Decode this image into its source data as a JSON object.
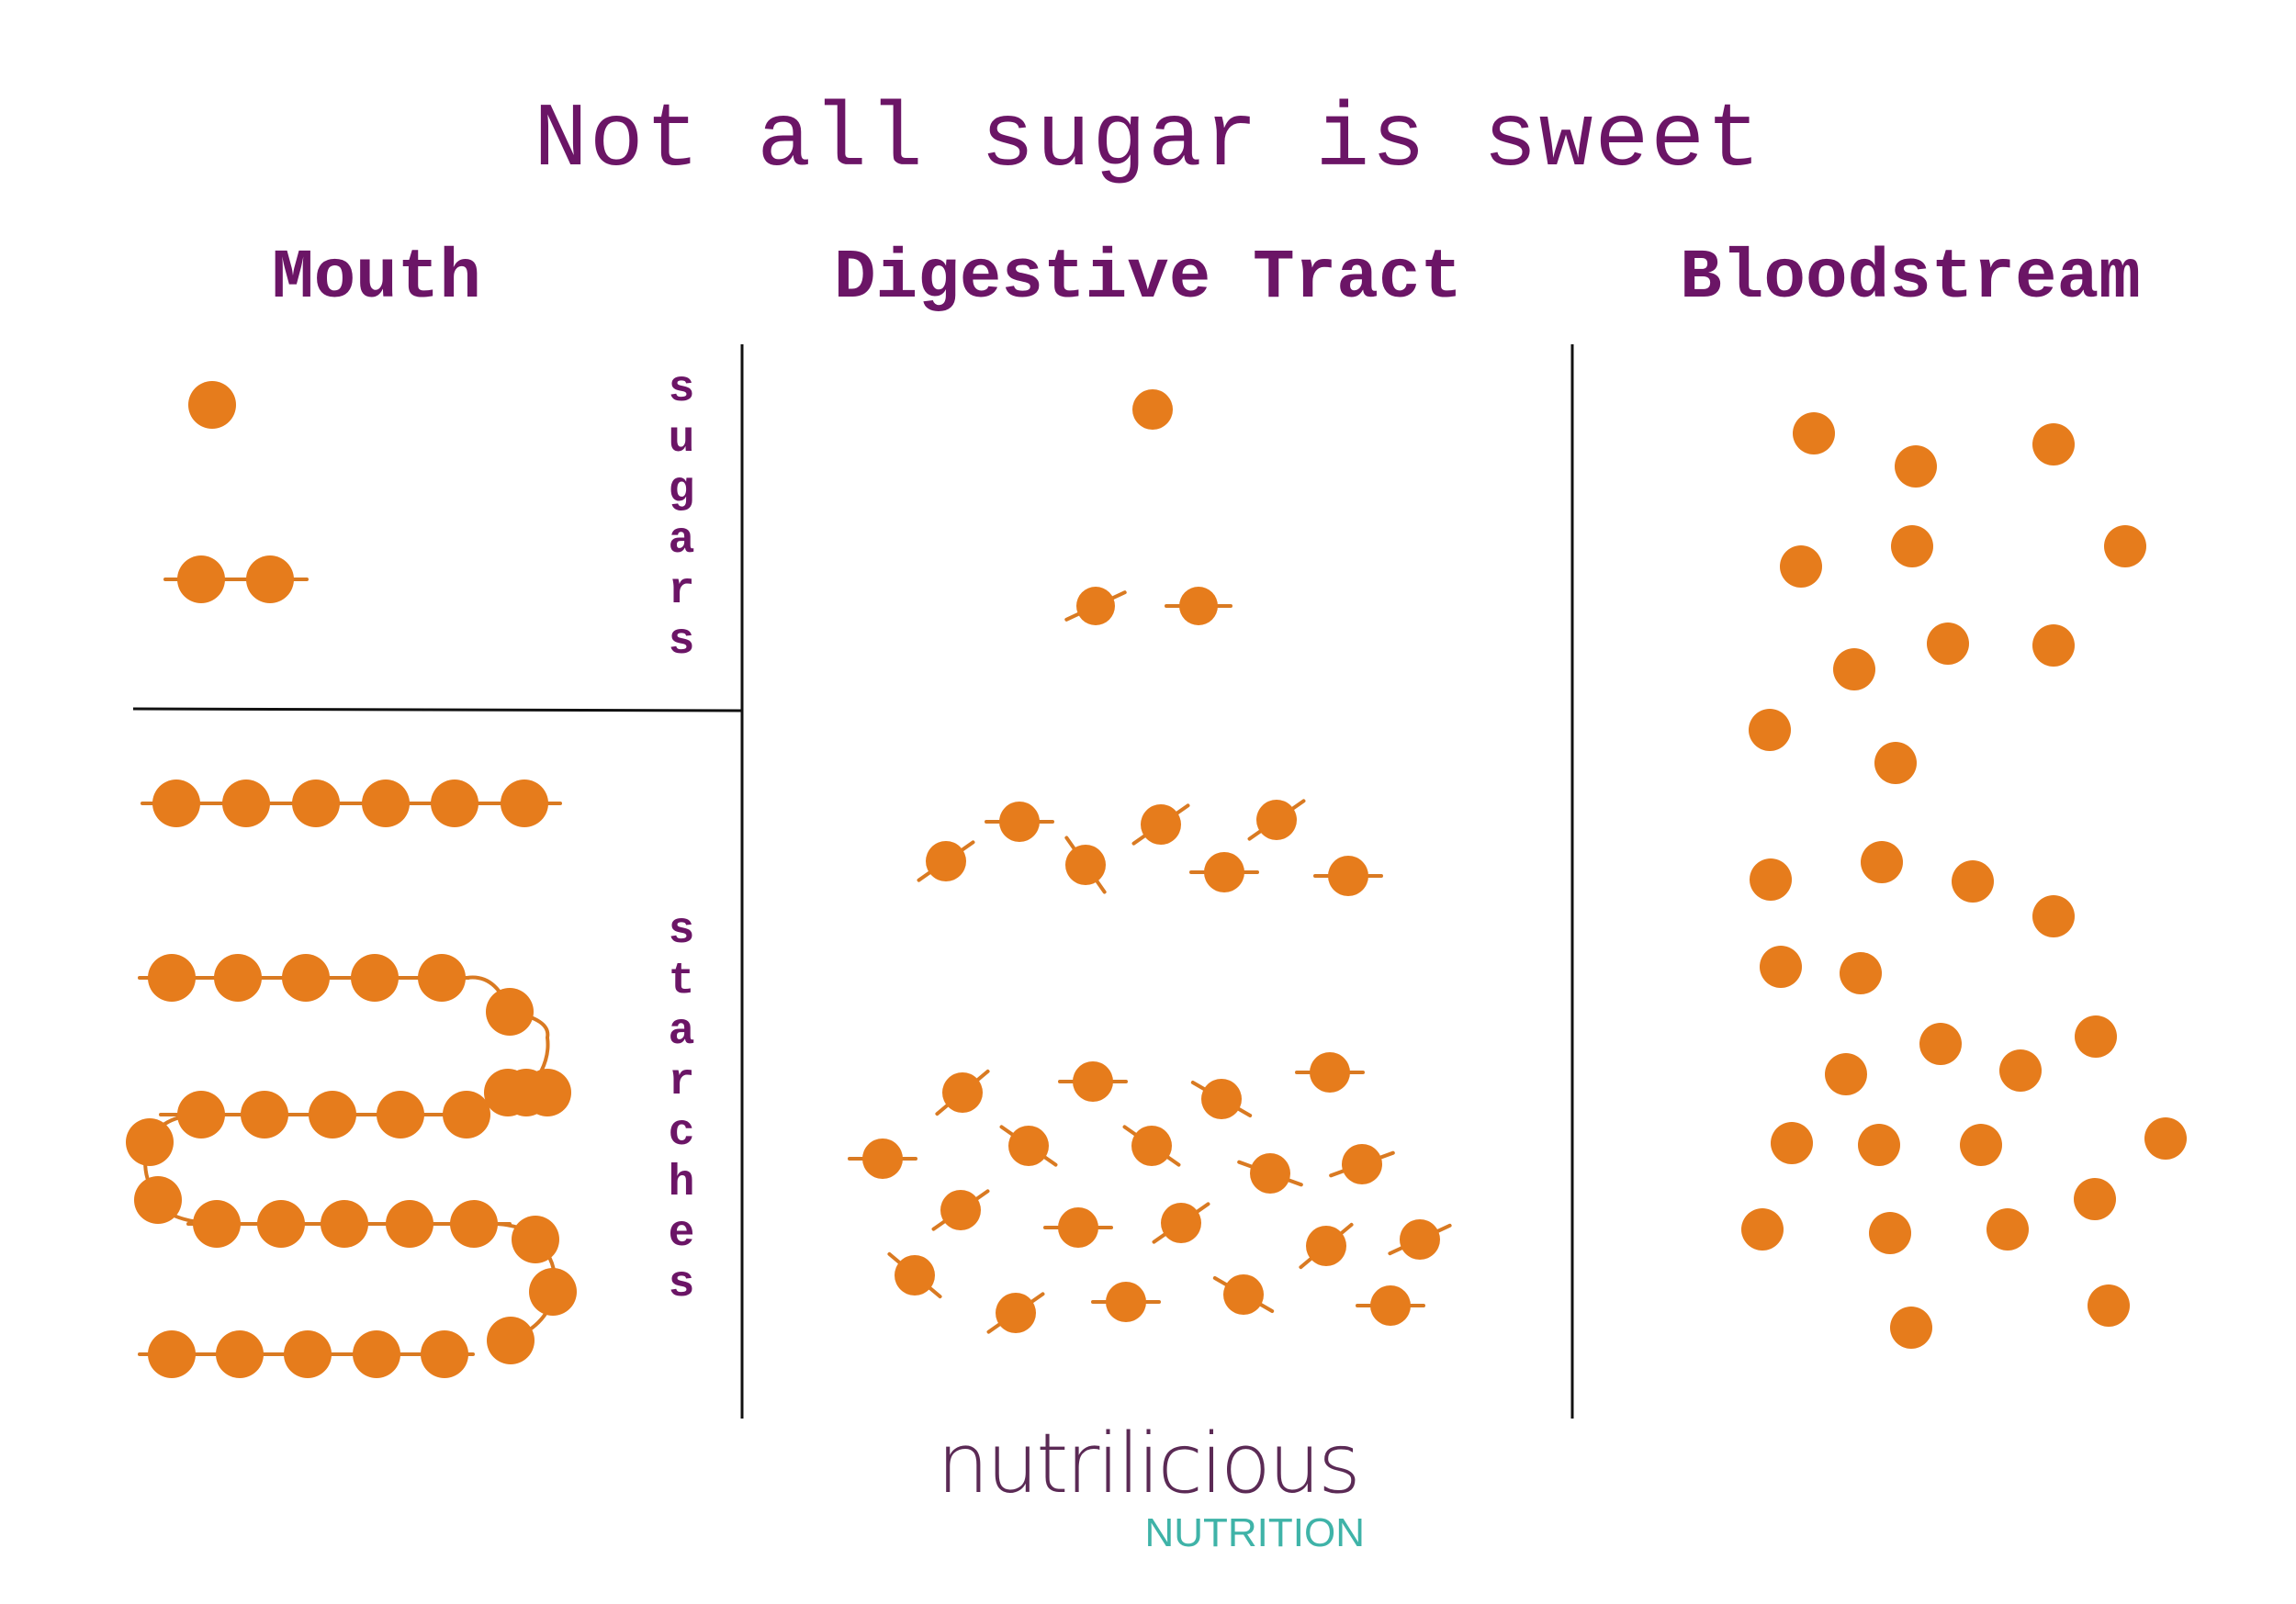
{
  "title": "Not all sugar is sweet",
  "columns": {
    "mouth": "Mouth",
    "digestive_tract": "Digestive Tract",
    "bloodstream": "Bloodstream"
  },
  "rows": {
    "sugars": "sugars",
    "starches": "starches"
  },
  "logo": {
    "word": "nutrilicious",
    "subtitle": "NUTRITION"
  },
  "colors": {
    "molecule": "#e67c1c",
    "bond": "#d97a22",
    "text": "#6b1566",
    "divider": "#111111",
    "logo_word": "#5b2a55",
    "logo_sub": "#3fb3a8"
  }
}
